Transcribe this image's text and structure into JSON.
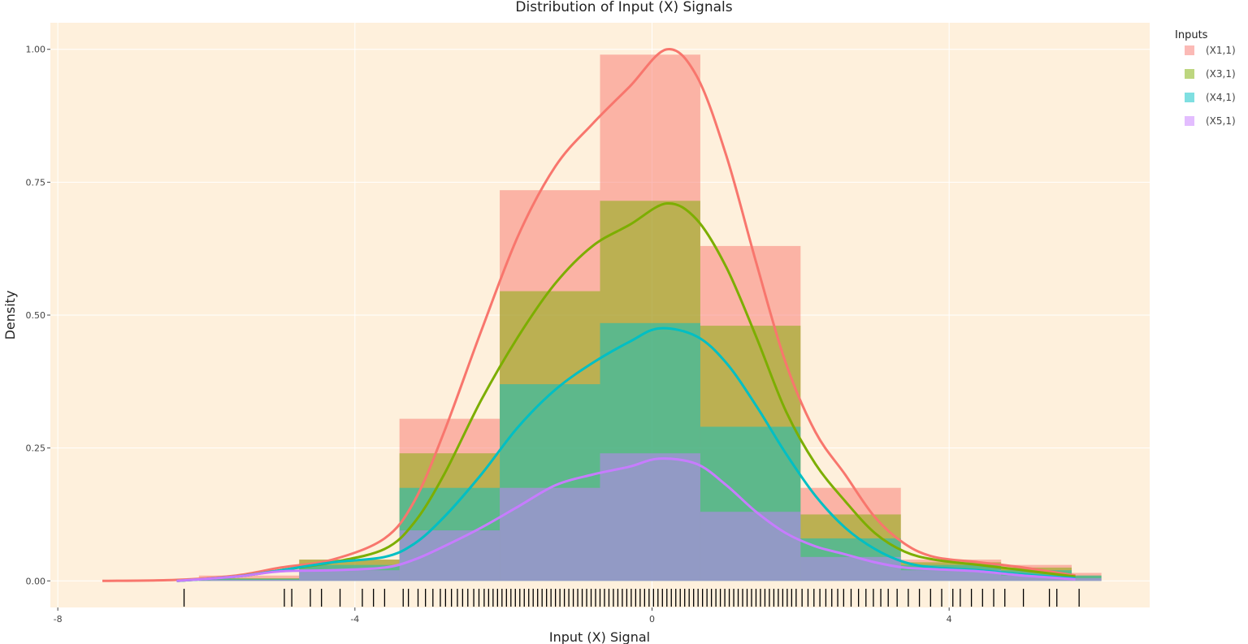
{
  "chart_data": {
    "type": "bar",
    "subtype": "stacked-histogram-with-density-and-rug",
    "title": "Distribution of Input (X) Signals",
    "xlabel": "Input (X) Signal",
    "ylabel": "Density",
    "xlim": [
      -8.1,
      6.7
    ],
    "ylim": [
      -0.05,
      1.05
    ],
    "x_ticks": [
      -8,
      -4,
      0,
      4
    ],
    "y_ticks": [
      0.0,
      0.25,
      0.5,
      0.75,
      1.0
    ],
    "y_tick_labels": [
      "0.00",
      "0.25",
      "0.50",
      "0.75",
      "1.00"
    ],
    "grid": true,
    "background": "#fef0dc",
    "legend": {
      "title": "Inputs",
      "position": "right",
      "entries": [
        "(X1,1)",
        "(X3,1)",
        "(X4,1)",
        "(X5,1)"
      ]
    },
    "bin_edges": [
      -6.1,
      -4.75,
      -3.4,
      -2.05,
      -0.7,
      0.65,
      2.0,
      3.35,
      4.7,
      5.65,
      6.05
    ],
    "series": [
      {
        "name": "(X1,1)",
        "color": "#f8766d",
        "bar_top": [
          0.01,
          0.04,
          0.305,
          0.735,
          0.99,
          0.63,
          0.175,
          0.04,
          0.03,
          0.015
        ],
        "density": [
          [
            -7.4,
            0.0
          ],
          [
            -6.4,
            0.002
          ],
          [
            -5.6,
            0.01
          ],
          [
            -5.0,
            0.025
          ],
          [
            -4.3,
            0.04
          ],
          [
            -3.6,
            0.08
          ],
          [
            -3.2,
            0.15
          ],
          [
            -2.8,
            0.28
          ],
          [
            -2.3,
            0.47
          ],
          [
            -1.8,
            0.65
          ],
          [
            -1.3,
            0.78
          ],
          [
            -0.8,
            0.86
          ],
          [
            -0.3,
            0.93
          ],
          [
            0.2,
            1.0
          ],
          [
            0.6,
            0.95
          ],
          [
            1.0,
            0.8
          ],
          [
            1.4,
            0.6
          ],
          [
            1.8,
            0.41
          ],
          [
            2.2,
            0.28
          ],
          [
            2.6,
            0.2
          ],
          [
            3.0,
            0.12
          ],
          [
            3.4,
            0.07
          ],
          [
            3.8,
            0.045
          ],
          [
            4.4,
            0.035
          ],
          [
            5.0,
            0.025
          ],
          [
            5.7,
            0.01
          ]
        ]
      },
      {
        "name": "(X3,1)",
        "color": "#7cae00",
        "bar_top": [
          0.005,
          0.04,
          0.24,
          0.545,
          0.715,
          0.48,
          0.125,
          0.035,
          0.025,
          0.01
        ],
        "density": [
          [
            -6.4,
            0.0
          ],
          [
            -5.6,
            0.008
          ],
          [
            -5.0,
            0.02
          ],
          [
            -4.3,
            0.035
          ],
          [
            -3.6,
            0.06
          ],
          [
            -3.2,
            0.11
          ],
          [
            -2.8,
            0.2
          ],
          [
            -2.3,
            0.34
          ],
          [
            -1.8,
            0.46
          ],
          [
            -1.3,
            0.56
          ],
          [
            -0.8,
            0.63
          ],
          [
            -0.3,
            0.67
          ],
          [
            0.2,
            0.71
          ],
          [
            0.6,
            0.68
          ],
          [
            1.0,
            0.59
          ],
          [
            1.4,
            0.46
          ],
          [
            1.8,
            0.32
          ],
          [
            2.2,
            0.22
          ],
          [
            2.6,
            0.15
          ],
          [
            3.0,
            0.09
          ],
          [
            3.4,
            0.055
          ],
          [
            3.8,
            0.04
          ],
          [
            4.4,
            0.03
          ],
          [
            5.0,
            0.02
          ],
          [
            5.7,
            0.008
          ]
        ]
      },
      {
        "name": "(X4,1)",
        "color": "#00bfc4",
        "bar_top": [
          0.004,
          0.03,
          0.175,
          0.37,
          0.485,
          0.29,
          0.08,
          0.03,
          0.02,
          0.01
        ],
        "density": [
          [
            -6.4,
            0.0
          ],
          [
            -5.6,
            0.008
          ],
          [
            -5.0,
            0.02
          ],
          [
            -4.3,
            0.035
          ],
          [
            -3.6,
            0.045
          ],
          [
            -3.2,
            0.07
          ],
          [
            -2.8,
            0.12
          ],
          [
            -2.3,
            0.2
          ],
          [
            -1.8,
            0.29
          ],
          [
            -1.3,
            0.36
          ],
          [
            -0.8,
            0.41
          ],
          [
            -0.3,
            0.45
          ],
          [
            0.1,
            0.475
          ],
          [
            0.6,
            0.46
          ],
          [
            1.0,
            0.41
          ],
          [
            1.4,
            0.33
          ],
          [
            1.8,
            0.24
          ],
          [
            2.2,
            0.16
          ],
          [
            2.6,
            0.1
          ],
          [
            3.0,
            0.06
          ],
          [
            3.4,
            0.035
          ],
          [
            3.8,
            0.025
          ],
          [
            4.4,
            0.02
          ],
          [
            5.0,
            0.012
          ],
          [
            5.7,
            0.005
          ]
        ]
      },
      {
        "name": "(X5,1)",
        "color": "#c77cff",
        "bar_top": [
          0.002,
          0.02,
          0.095,
          0.175,
          0.24,
          0.13,
          0.045,
          0.02,
          0.01,
          0.005
        ],
        "density": [
          [
            -6.4,
            0.0
          ],
          [
            -5.6,
            0.008
          ],
          [
            -5.0,
            0.018
          ],
          [
            -4.3,
            0.02
          ],
          [
            -3.6,
            0.025
          ],
          [
            -3.2,
            0.04
          ],
          [
            -2.8,
            0.065
          ],
          [
            -2.3,
            0.1
          ],
          [
            -1.8,
            0.14
          ],
          [
            -1.3,
            0.18
          ],
          [
            -0.8,
            0.2
          ],
          [
            -0.3,
            0.215
          ],
          [
            0.1,
            0.23
          ],
          [
            0.6,
            0.22
          ],
          [
            1.0,
            0.18
          ],
          [
            1.4,
            0.13
          ],
          [
            1.8,
            0.09
          ],
          [
            2.2,
            0.065
          ],
          [
            2.6,
            0.05
          ],
          [
            3.0,
            0.035
          ],
          [
            3.4,
            0.025
          ],
          [
            3.8,
            0.022
          ],
          [
            4.4,
            0.018
          ],
          [
            5.0,
            0.01
          ],
          [
            5.7,
            0.003
          ]
        ]
      }
    ],
    "rug": [
      -6.3,
      -4.95,
      -4.85,
      -4.6,
      -4.45,
      -4.2,
      -3.9,
      -3.75,
      -3.6,
      -3.35,
      -3.28,
      -3.15,
      -3.05,
      -2.95,
      -2.85,
      -2.78,
      -2.7,
      -2.62,
      -2.55,
      -2.48,
      -2.4,
      -2.33,
      -2.26,
      -2.2,
      -2.14,
      -2.08,
      -2.02,
      -1.96,
      -1.9,
      -1.84,
      -1.78,
      -1.72,
      -1.66,
      -1.6,
      -1.54,
      -1.48,
      -1.42,
      -1.36,
      -1.3,
      -1.24,
      -1.18,
      -1.12,
      -1.06,
      -1.0,
      -0.94,
      -0.88,
      -0.82,
      -0.76,
      -0.7,
      -0.64,
      -0.58,
      -0.52,
      -0.46,
      -0.4,
      -0.34,
      -0.28,
      -0.22,
      -0.16,
      -0.1,
      -0.04,
      0.02,
      0.08,
      0.14,
      0.2,
      0.26,
      0.32,
      0.38,
      0.44,
      0.5,
      0.56,
      0.62,
      0.68,
      0.74,
      0.8,
      0.86,
      0.92,
      0.98,
      1.04,
      1.1,
      1.16,
      1.22,
      1.28,
      1.34,
      1.4,
      1.46,
      1.52,
      1.58,
      1.64,
      1.7,
      1.76,
      1.82,
      1.88,
      1.94,
      2.02,
      2.1,
      2.18,
      2.26,
      2.34,
      2.42,
      2.5,
      2.58,
      2.68,
      2.78,
      2.88,
      2.98,
      3.08,
      3.18,
      3.3,
      3.45,
      3.6,
      3.75,
      3.9,
      4.05,
      4.15,
      4.3,
      4.45,
      4.6,
      4.75,
      5.0,
      5.35,
      5.45,
      5.75
    ]
  }
}
